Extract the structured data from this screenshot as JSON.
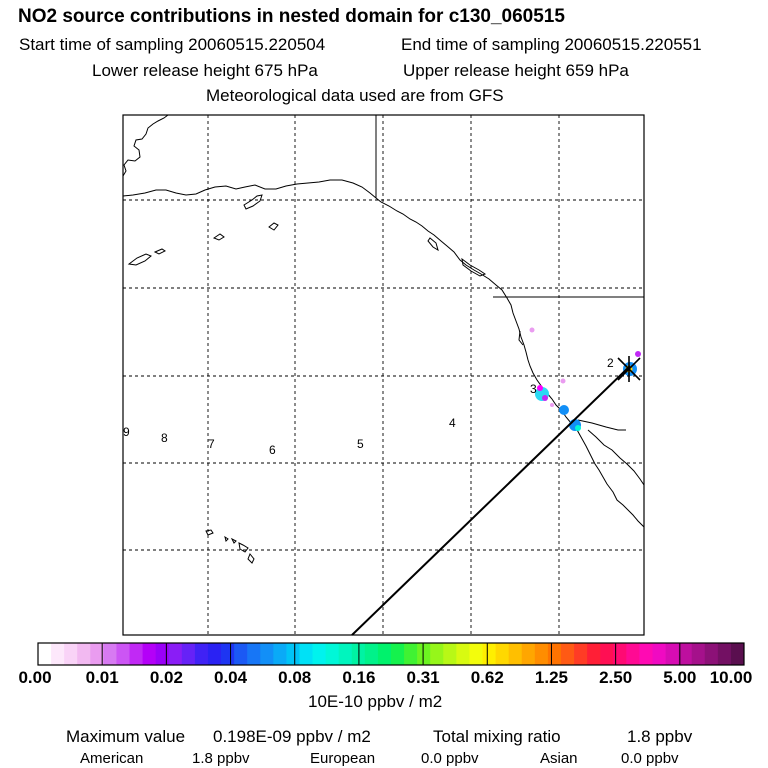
{
  "header": {
    "title": "NO2 source contributions in nested domain for c130_060515",
    "sampling_start": "Start time of sampling 20060515.220504",
    "sampling_end": "End time of sampling 20060515.220551",
    "lower_release": "Lower release height  675 hPa",
    "upper_release": "Upper release height  659 hPa",
    "met_data": "Meteorological data used are from GFS"
  },
  "map": {
    "trajectory_labels": [
      "9",
      "8",
      "7",
      "6",
      "5",
      "4",
      "3",
      "2"
    ],
    "colors": {
      "coast": "#000000",
      "grid": "#000000",
      "frame": "#000000",
      "plume_hot": "#ff00ff",
      "plume_cold": "#00ffff"
    }
  },
  "colorbar": {
    "tick_labels": [
      "0.00",
      "0.01",
      "0.02",
      "0.04",
      "0.08",
      "0.16",
      "0.31",
      "0.62",
      "1.25",
      "2.50",
      "5.00",
      "10.00"
    ],
    "units": "10E-10 ppbv / m2",
    "colors": [
      "#ffffff",
      "#fde8fb",
      "#f9d3f7",
      "#f2b9f1",
      "#ea9cf0",
      "#d77af2",
      "#cc55f4",
      "#c129f5",
      "#b400f8",
      "#9a00f8",
      "#8a1df6",
      "#6622f7",
      "#4022f5",
      "#2a22f3",
      "#1e35f2",
      "#1b59f4",
      "#1776f6",
      "#128ff7",
      "#0aaaf7",
      "#00c4f7",
      "#00e1f6",
      "#00f3ee",
      "#00f7d8",
      "#00f5be",
      "#00f3a3",
      "#00f28a",
      "#00f26c",
      "#15f24d",
      "#40f233",
      "#6cf421",
      "#96f61a",
      "#b8f816",
      "#d8fa11",
      "#f3fd0c",
      "#ffef00",
      "#ffd800",
      "#ffbf00",
      "#ffa600",
      "#ff8d00",
      "#ff7300",
      "#ff5a14",
      "#ff3c25",
      "#ff1f36",
      "#ff0f53",
      "#ff0a73",
      "#ff0a93",
      "#ff0ab3",
      "#f00ac2",
      "#d70cb3",
      "#be0f9f",
      "#a5118b",
      "#8c1177",
      "#731063",
      "#5a0f4f"
    ]
  },
  "footer": {
    "max_label": "Maximum value",
    "max_value": "0.198E-09 ppbv / m2",
    "total_label": "Total mixing ratio",
    "total_value": "1.8 ppbv",
    "american_label": "American",
    "american_value": "1.8 ppbv",
    "european_label": "European",
    "european_value": "0.0 ppbv",
    "asian_label": "Asian",
    "asian_value": "0.0 ppbv"
  }
}
